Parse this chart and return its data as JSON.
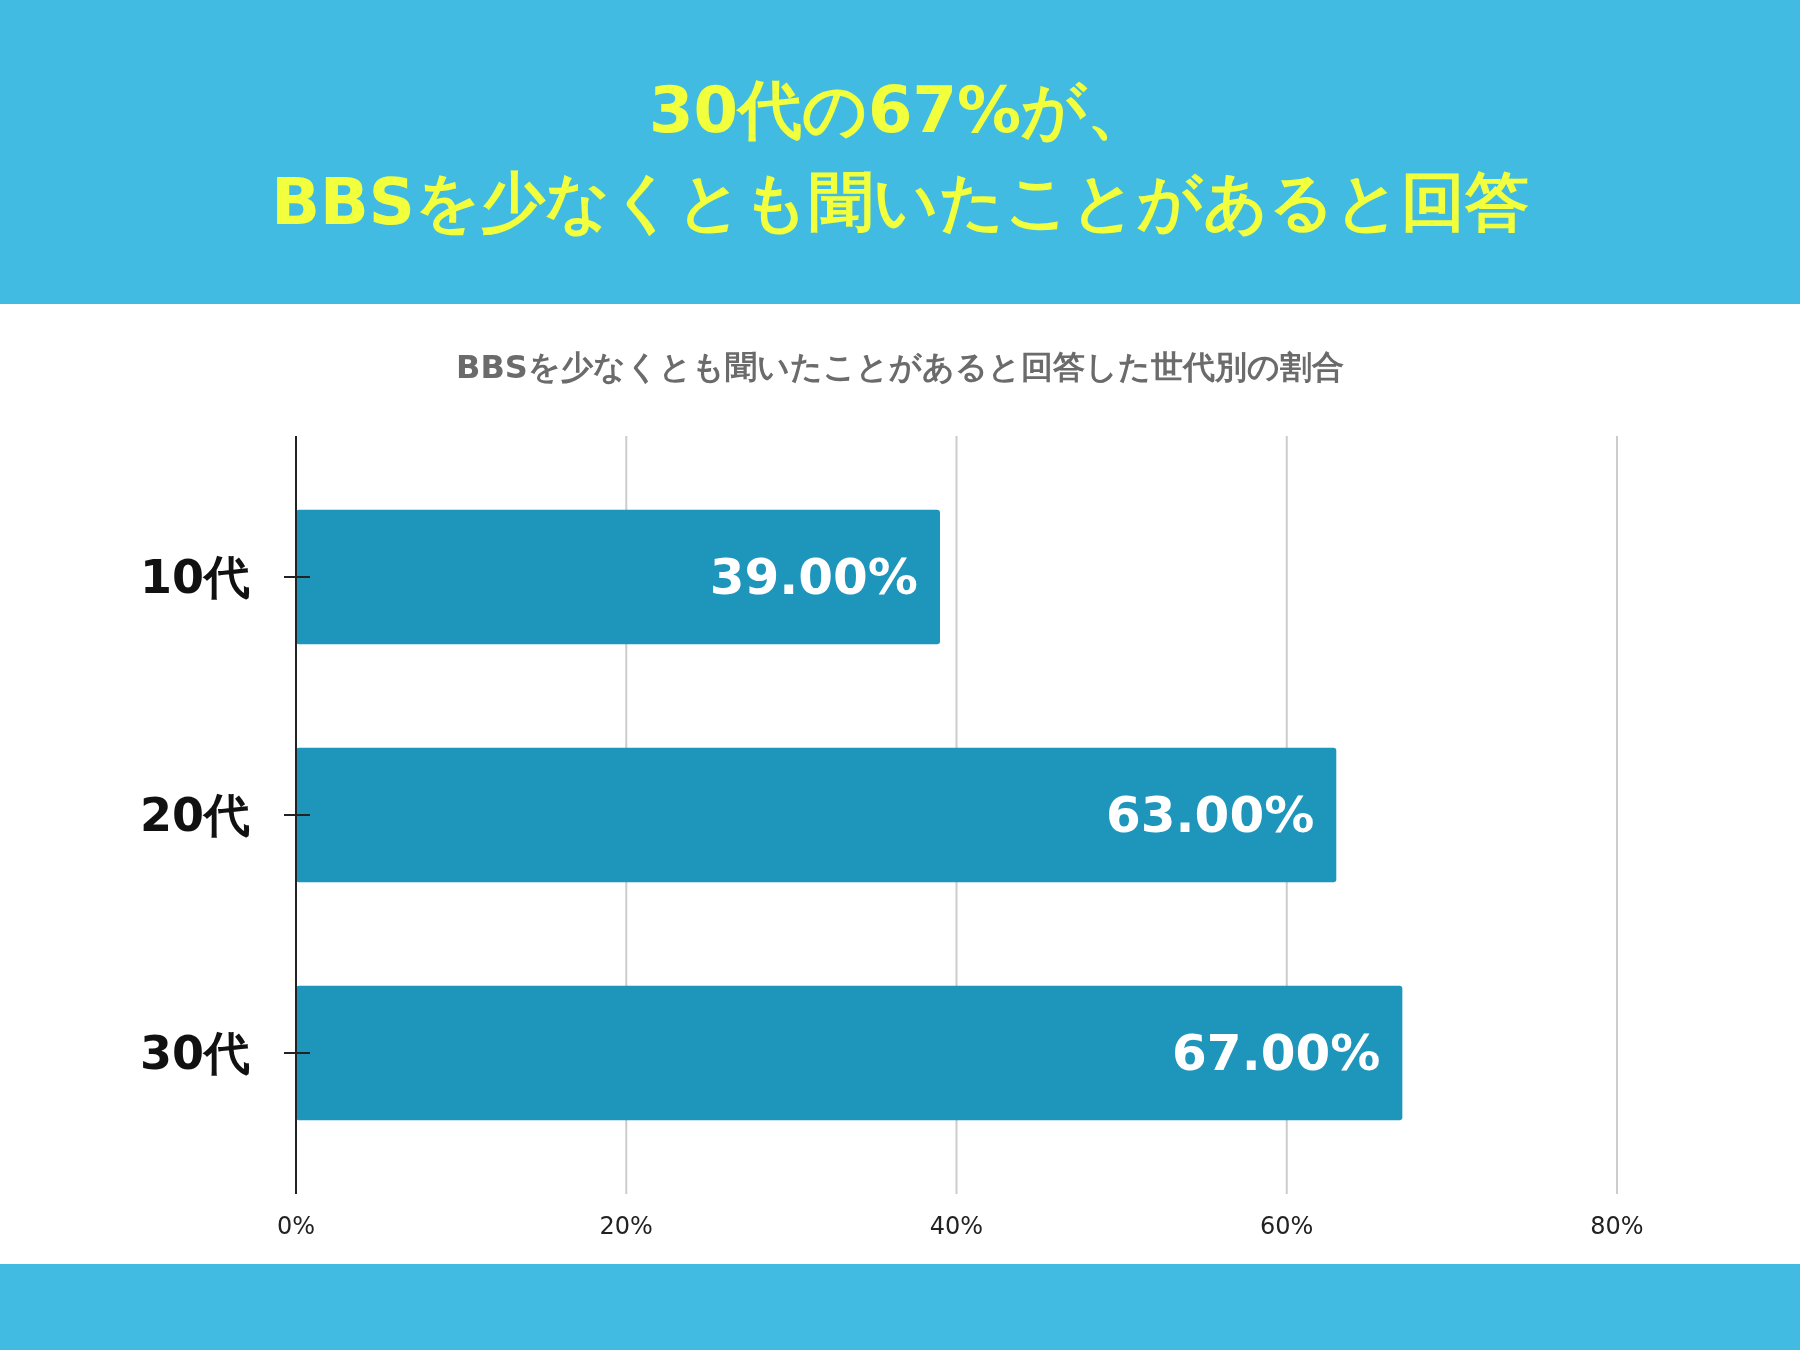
{
  "chart_data": {
    "type": "bar",
    "orientation": "horizontal",
    "title": "30代の67%が、\nBBSを少なくとも聞いたことがあると回答",
    "subtitle": "BBSを少なくとも聞いたことがあると回答した世代別の割合",
    "categories": [
      "10代",
      "20代",
      "30代"
    ],
    "values": [
      39,
      63,
      67
    ],
    "value_labels": [
      "39.00%",
      "63.00%",
      "67.00%"
    ],
    "color": "#1e95bb",
    "xlim": [
      0,
      80
    ],
    "xticks": [
      {
        "value": 0,
        "label": "0%"
      },
      {
        "value": 20,
        "label": "20%"
      },
      {
        "value": 40,
        "label": "40%"
      },
      {
        "value": 60,
        "label": "60%"
      },
      {
        "value": 80,
        "label": "80%"
      }
    ],
    "grid": "x"
  }
}
